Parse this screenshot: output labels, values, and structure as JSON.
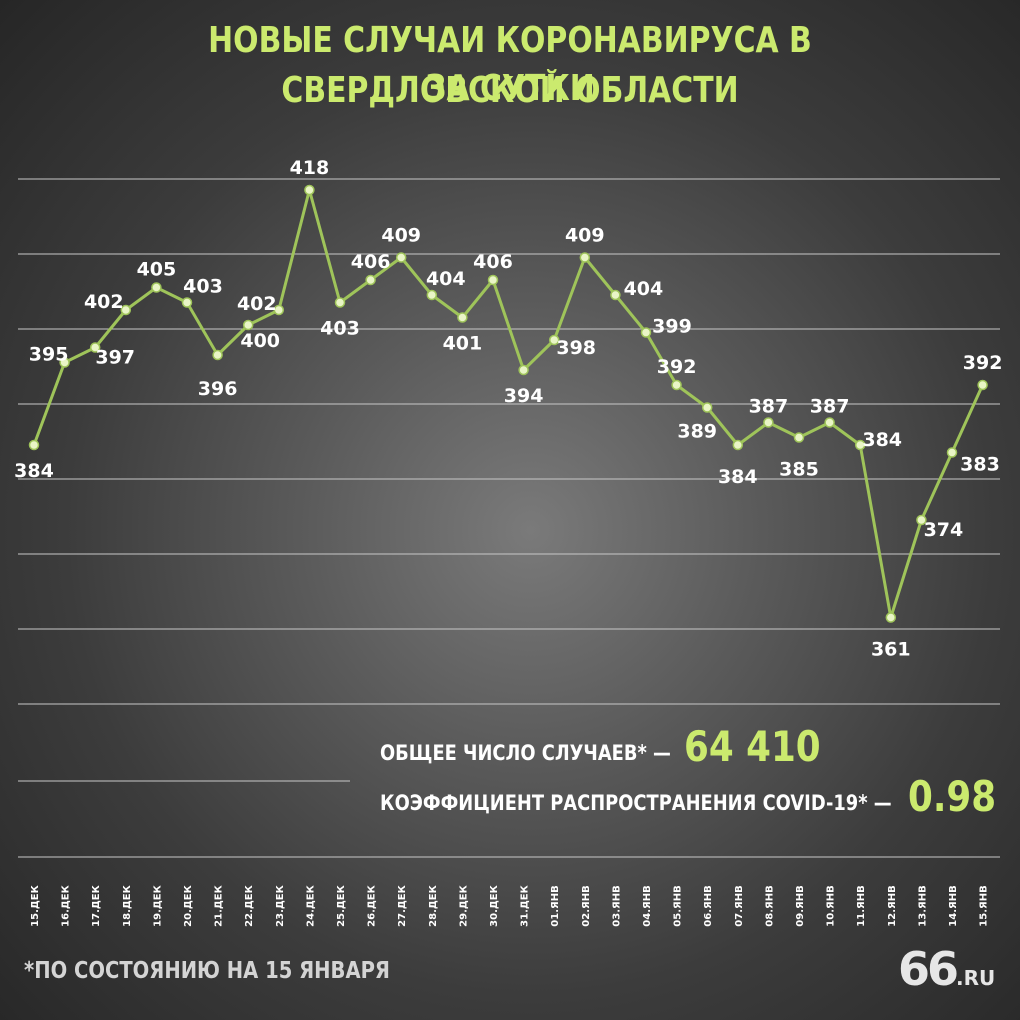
{
  "title": {
    "line1": "НОВЫЕ СЛУЧАИ КОРОНАВИРУСА В СВЕРДЛОВСКОЙ ОБЛАСТИ",
    "line2": "ЗА СУТКИ"
  },
  "stats": {
    "total_label": "ОБЩЕЕ ЧИСЛО СЛУЧАЕВ* —",
    "total_value": "64 410",
    "r_label": "КОЭФФИЦИЕНТ РАСПРОСТРАНЕНИЯ COVID-19* —",
    "r_value": "0.98"
  },
  "footnote": "*ПО СОСТОЯНИЮ НА 15 ЯНВАРЯ",
  "logo": {
    "number": "66",
    "domain": ".RU"
  },
  "colors": {
    "accent": "#cbea6e",
    "line": "#9fc45a",
    "point_fill": "#e9f5c6",
    "grid": "#c8c8c8",
    "label": "#ffffff"
  },
  "chart_data": {
    "type": "line",
    "title": "НОВЫЕ СЛУЧАИ КОРОНАВИРУСА В СВЕРДЛОВСКОЙ ОБЛАСТИ ЗА СУТКИ",
    "xlabel": "",
    "ylabel": "",
    "ylim": [
      350,
      420
    ],
    "grid": true,
    "categories": [
      "15.ДЕК",
      "16.ДЕК",
      "17.ДЕК",
      "18.ДЕК",
      "19.ДЕК",
      "20.ДЕК",
      "21.ДЕК",
      "22.ДЕК",
      "23.ДЕК",
      "24.ДЕК",
      "25.ДЕК",
      "26.ДЕК",
      "27.ДЕК",
      "28.ДЕК",
      "29.ДЕК",
      "30.ДЕК",
      "31.ДЕК",
      "01.ЯНВ",
      "02.ЯНВ",
      "03.ЯНВ",
      "04.ЯНВ",
      "05.ЯНВ",
      "06.ЯНВ",
      "07.ЯНВ",
      "08.ЯНВ",
      "09.ЯНВ",
      "10.ЯНВ",
      "11.ЯНВ",
      "12.ЯНВ",
      "13.ЯНВ",
      "14.ЯНВ",
      "15.ЯНВ"
    ],
    "values": [
      384,
      395,
      397,
      402,
      405,
      403,
      396,
      400,
      402,
      418,
      403,
      406,
      409,
      404,
      401,
      406,
      394,
      398,
      409,
      404,
      399,
      392,
      389,
      384,
      387,
      385,
      387,
      384,
      361,
      374,
      383,
      392
    ]
  }
}
